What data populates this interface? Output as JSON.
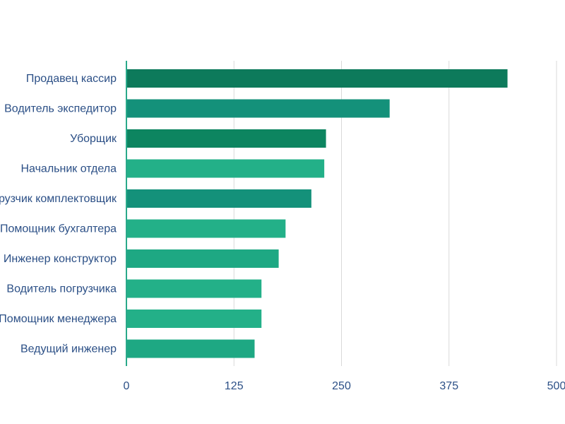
{
  "chart_data": {
    "type": "bar",
    "orientation": "horizontal",
    "title": "",
    "xlabel": "",
    "ylabel": "",
    "xlim": [
      0,
      500
    ],
    "ticks": [
      "0",
      "125",
      "250",
      "375",
      "500"
    ],
    "tick_values": [
      0,
      125,
      250,
      375,
      500
    ],
    "grid": true,
    "legend": "none",
    "categories": [
      "Продавец кассир",
      "Водитель экспедитор",
      "Уборщик",
      "Начальник отдела",
      "Грузчик комплектовщик",
      "Помощник бухгалтера",
      "Инженер конструктор",
      "Водитель погрузчика",
      "Помощник менеджера",
      "Ведущий инженер"
    ],
    "values": [
      443,
      306,
      232,
      230,
      215,
      185,
      177,
      157,
      157,
      149
    ],
    "colors": [
      "#0d7a5b",
      "#14917a",
      "#0d8560",
      "#23b088",
      "#14917a",
      "#23b088",
      "#1ea883",
      "#23b088",
      "#23b088",
      "#1ea883"
    ],
    "tick_color": "#2b4f86",
    "grid_color": "#d9d9d9"
  }
}
